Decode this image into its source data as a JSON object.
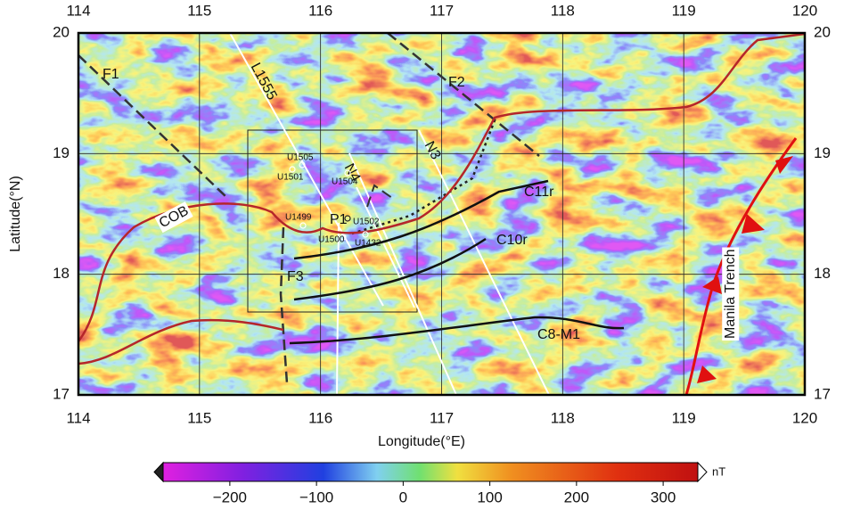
{
  "map": {
    "xlim": [
      114,
      120
    ],
    "ylim": [
      17,
      20
    ],
    "xticks": [
      114,
      115,
      116,
      117,
      118,
      119,
      120
    ],
    "yticks": [
      17,
      18,
      19,
      20
    ],
    "x_label": "Longitude(°E)",
    "y_label": "Latitude(°N)",
    "labels": [
      "F1",
      "F2",
      "F3",
      "L1555",
      "N4",
      "N3",
      "P1",
      "COB",
      "C11r",
      "C10r",
      "C8-M1",
      "Manila Trench"
    ],
    "sites": [
      "U1505",
      "U1501",
      "U1504",
      "U1499",
      "U1502",
      "U1500",
      "U1432"
    ]
  },
  "colorbar": {
    "lim": [
      -277,
      340
    ],
    "ticks": [
      {
        "value": -200,
        "label": "−200"
      },
      {
        "value": -100,
        "label": "−100"
      },
      0,
      100,
      200,
      300
    ],
    "unit": "nT"
  }
}
